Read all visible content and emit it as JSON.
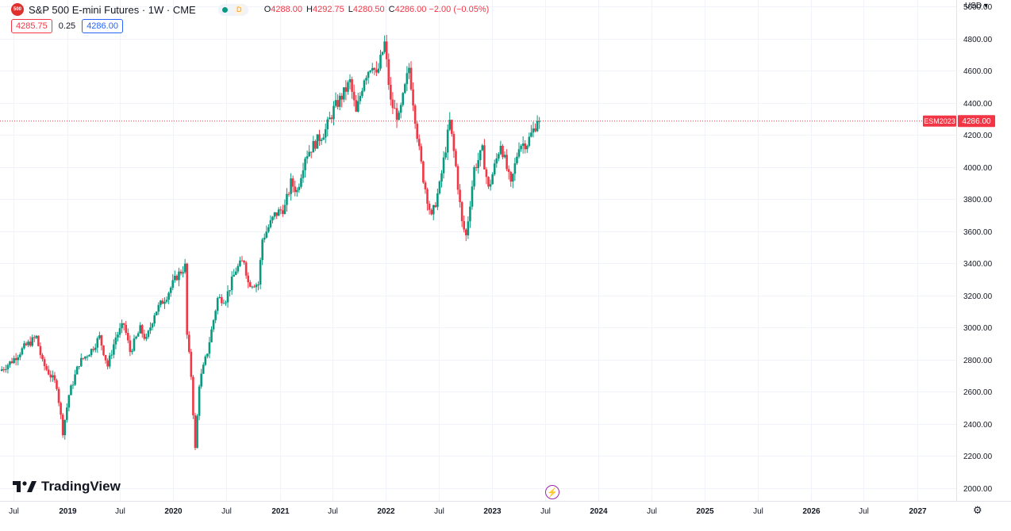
{
  "header": {
    "exchange_badge": "500",
    "symbol_title": "S&P 500 E-mini Futures · 1W · CME",
    "market_status_badge": "D",
    "ohlc": [
      {
        "label": "O",
        "value": "4288.00"
      },
      {
        "label": "H",
        "value": "4292.75"
      },
      {
        "label": "L",
        "value": "4280.50"
      },
      {
        "label": "C",
        "value": "4286.00 −2.00 (−0.05%)"
      }
    ]
  },
  "quote": {
    "bid": "4285.75",
    "spread": "0.25",
    "ask": "4286.00"
  },
  "currency_label": "USD ▾",
  "brand": "TradingView",
  "colors": {
    "up": "#089981",
    "down": "#f23645",
    "grid": "#f0f3fa",
    "axis_text": "#131722",
    "price_line": "#f23645"
  },
  "chart_data": {
    "type": "candlestick",
    "x_tick_labels": [
      "Jul",
      "2019",
      "Jul",
      "2020",
      "Jul",
      "2021",
      "Jul",
      "2022",
      "Jul",
      "2023",
      "Jul",
      "2024",
      "Jul",
      "2025",
      "Jul",
      "2026",
      "Jul",
      "2027"
    ],
    "x_ticks_dates": [
      "2018-07",
      "2019-01",
      "2019-07",
      "2020-01",
      "2020-07",
      "2021-01",
      "2021-07",
      "2022-01",
      "2022-07",
      "2023-01",
      "2023-07",
      "2024-01",
      "2024-07",
      "2025-01",
      "2025-07",
      "2026-01",
      "2026-07",
      "2027-01"
    ],
    "x_range": [
      "2018-05-15",
      "2027-05-15"
    ],
    "y_range": [
      1920,
      5040
    ],
    "y_tick_labels": [
      "2000.00",
      "2200.00",
      "2400.00",
      "2600.00",
      "2800.00",
      "3000.00",
      "3200.00",
      "3400.00",
      "3600.00",
      "3800.00",
      "4000.00",
      "4200.00",
      "4400.00",
      "4600.00",
      "4800.00",
      "5000.00"
    ],
    "y_ticks": [
      2000,
      2200,
      2400,
      2600,
      2800,
      3000,
      3200,
      3400,
      3600,
      3800,
      4000,
      4200,
      4400,
      4600,
      4800,
      5000
    ],
    "last_price": {
      "symbol": "ESM2023",
      "value": 4286.0,
      "label": "4286.00"
    },
    "grid": true,
    "price_path": [
      [
        "2018-05-21",
        2730
      ],
      [
        "2018-07-01",
        2790
      ],
      [
        "2018-08-15",
        2880
      ],
      [
        "2018-09-24",
        2940
      ],
      [
        "2018-10-15",
        2780
      ],
      [
        "2018-11-05",
        2720
      ],
      [
        "2018-12-03",
        2640
      ],
      [
        "2018-12-24",
        2350
      ],
      [
        "2019-01-14",
        2580
      ],
      [
        "2019-02-18",
        2780
      ],
      [
        "2019-04-01",
        2860
      ],
      [
        "2019-04-29",
        2940
      ],
      [
        "2019-05-27",
        2760
      ],
      [
        "2019-06-24",
        2940
      ],
      [
        "2019-07-22",
        3020
      ],
      [
        "2019-08-12",
        2850
      ],
      [
        "2019-09-16",
        2990
      ],
      [
        "2019-10-07",
        2920
      ],
      [
        "2019-11-04",
        3090
      ],
      [
        "2019-12-16",
        3200
      ],
      [
        "2020-01-20",
        3320
      ],
      [
        "2020-02-17",
        3380
      ],
      [
        "2020-02-24",
        2950
      ],
      [
        "2020-03-09",
        2700
      ],
      [
        "2020-03-23",
        2240
      ],
      [
        "2020-04-06",
        2650
      ],
      [
        "2020-05-04",
        2850
      ],
      [
        "2020-06-08",
        3180
      ],
      [
        "2020-07-06",
        3180
      ],
      [
        "2020-08-10",
        3360
      ],
      [
        "2020-09-07",
        3420
      ],
      [
        "2020-09-21",
        3280
      ],
      [
        "2020-10-26",
        3270
      ],
      [
        "2020-11-09",
        3550
      ],
      [
        "2020-12-21",
        3700
      ],
      [
        "2021-01-25",
        3750
      ],
      [
        "2021-02-15",
        3900
      ],
      [
        "2021-03-08",
        3850
      ],
      [
        "2021-04-05",
        4070
      ],
      [
        "2021-05-10",
        4150
      ],
      [
        "2021-06-14",
        4230
      ],
      [
        "2021-07-12",
        4360
      ],
      [
        "2021-08-16",
        4460
      ],
      [
        "2021-09-06",
        4530
      ],
      [
        "2021-09-27",
        4330
      ],
      [
        "2021-10-25",
        4560
      ],
      [
        "2021-11-22",
        4650
      ],
      [
        "2021-12-06",
        4560
      ],
      [
        "2022-01-03",
        4770
      ],
      [
        "2022-01-24",
        4400
      ],
      [
        "2022-02-21",
        4300
      ],
      [
        "2022-03-28",
        4620
      ],
      [
        "2022-05-02",
        4100
      ],
      [
        "2022-05-16",
        3930
      ],
      [
        "2022-06-13",
        3680
      ],
      [
        "2022-07-11",
        3880
      ],
      [
        "2022-08-15",
        4280
      ],
      [
        "2022-09-05",
        4000
      ],
      [
        "2022-09-26",
        3650
      ],
      [
        "2022-10-10",
        3570
      ],
      [
        "2022-11-07",
        3990
      ],
      [
        "2022-12-05",
        4100
      ],
      [
        "2022-12-26",
        3860
      ],
      [
        "2023-01-23",
        4050
      ],
      [
        "2023-02-06",
        4150
      ],
      [
        "2023-03-13",
        3880
      ],
      [
        "2023-04-10",
        4140
      ],
      [
        "2023-05-08",
        4150
      ],
      [
        "2023-05-29",
        4230
      ],
      [
        "2023-06-12",
        4288
      ]
    ]
  }
}
